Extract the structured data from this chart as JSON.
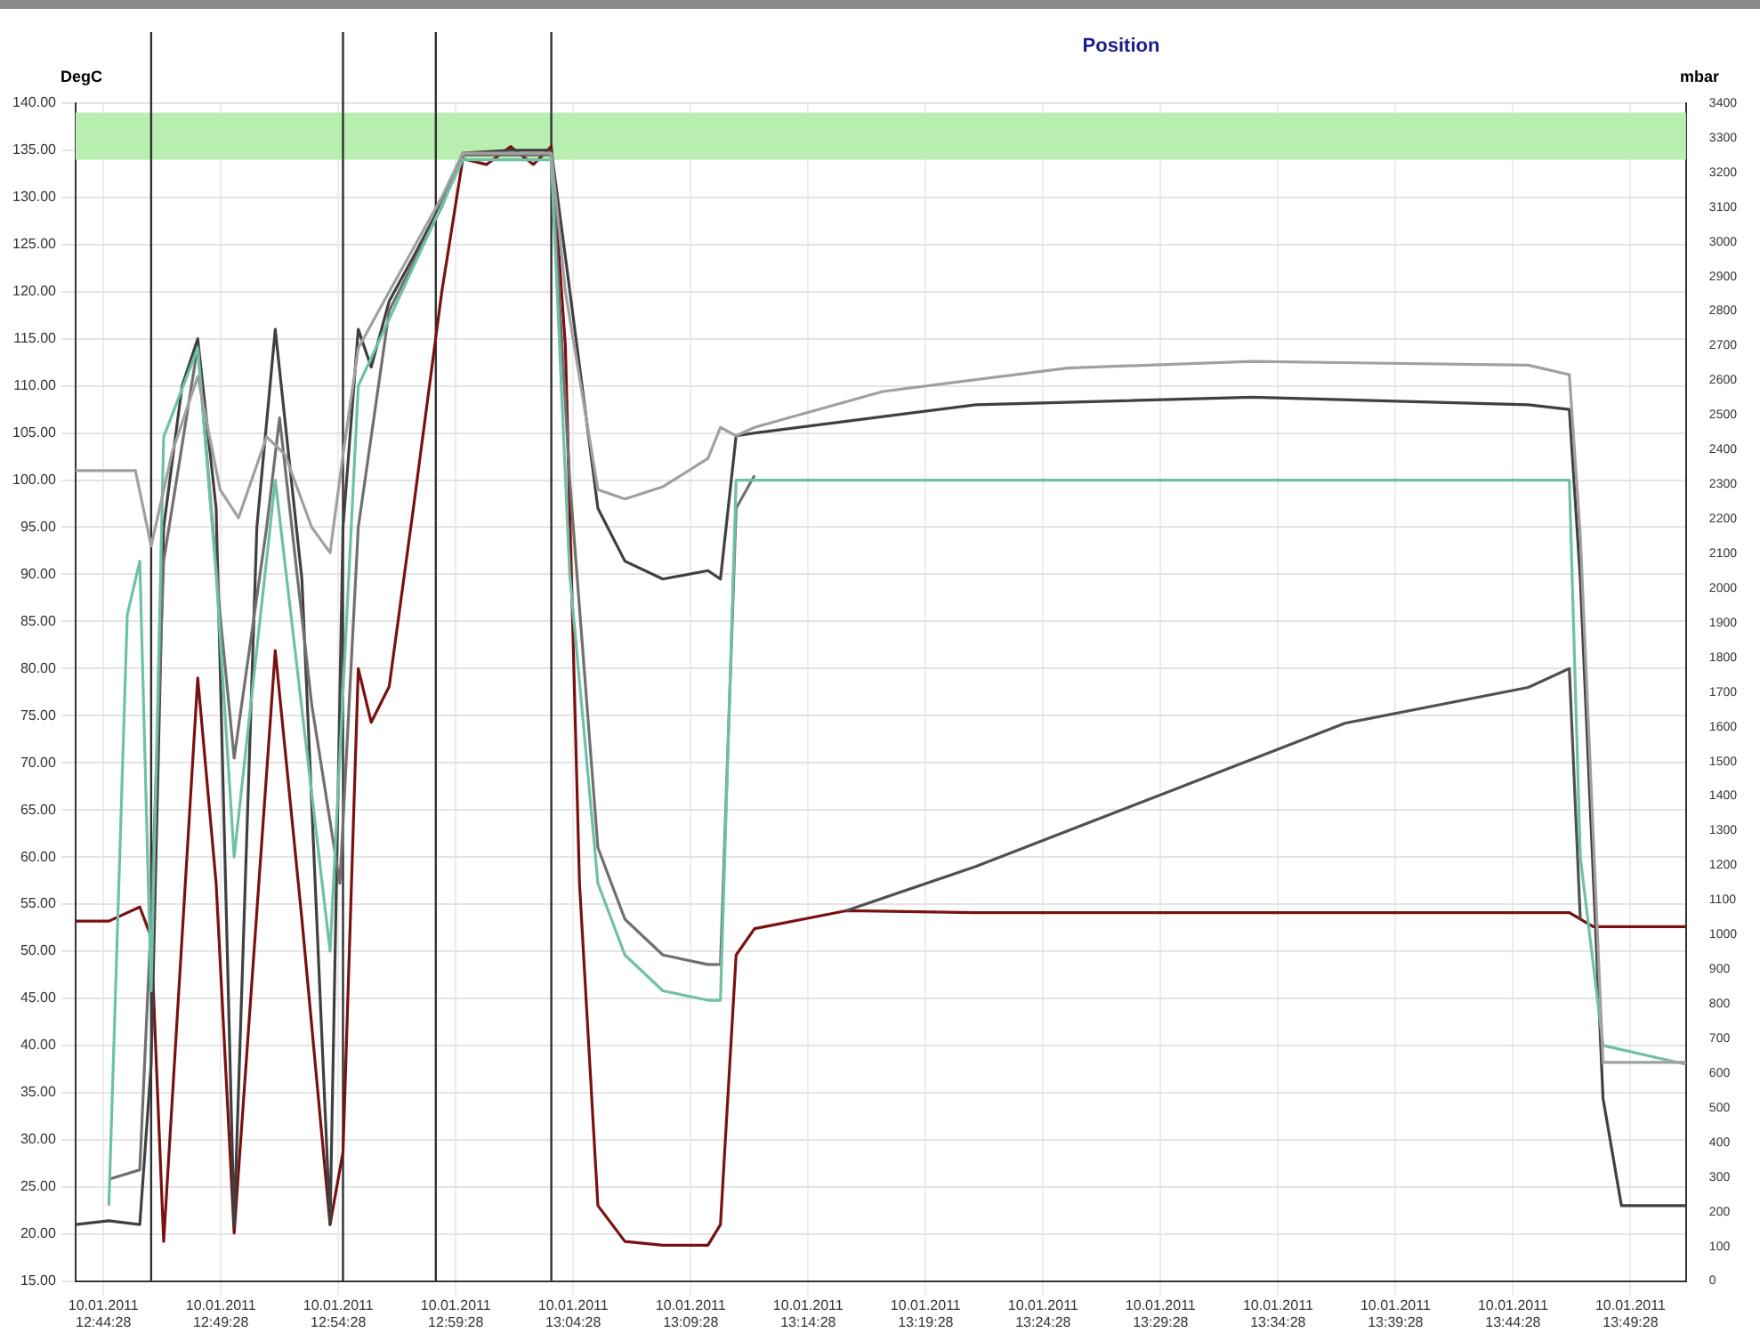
{
  "chart_data": {
    "type": "line",
    "title": "Position",
    "ylabel": "DegC",
    "y2label": "mbar",
    "xlim": [
      "2011-01-10T12:43:17",
      "2011-01-10T13:51:50"
    ],
    "xticks": [
      {
        "value": "2011-01-10T12:44:28",
        "label": "10.01.2011 12:44:28"
      },
      {
        "value": "2011-01-10T12:49:28",
        "label": "10.01.2011 12:49:28"
      },
      {
        "value": "2011-01-10T12:54:28",
        "label": "10.01.2011 12:54:28"
      },
      {
        "value": "2011-01-10T12:59:28",
        "label": "10.01.2011 12:59:28"
      },
      {
        "value": "2011-01-10T13:04:28",
        "label": "10.01.2011 13:04:28"
      },
      {
        "value": "2011-01-10T13:09:28",
        "label": "10.01.2011 13:09:28"
      },
      {
        "value": "2011-01-10T13:14:28",
        "label": "10.01.2011 13:14:28"
      },
      {
        "value": "2011-01-10T13:19:28",
        "label": "10.01.2011 13:19:28"
      },
      {
        "value": "2011-01-10T13:24:28",
        "label": "10.01.2011 13:24:28"
      },
      {
        "value": "2011-01-10T13:29:28",
        "label": "10.01.2011 13:29:28"
      },
      {
        "value": "2011-01-10T13:34:28",
        "label": "10.01.2011 13:34:28"
      },
      {
        "value": "2011-01-10T13:39:28",
        "label": "10.01.2011 13:39:28"
      },
      {
        "value": "2011-01-10T13:44:28",
        "label": "10.01.2011 13:44:28"
      },
      {
        "value": "2011-01-10T13:49:28",
        "label": "10.01.2011 13:49:28"
      }
    ],
    "ylim": [
      15,
      140
    ],
    "yticks": [
      {
        "value": 15,
        "label": "15.00"
      },
      {
        "value": 20,
        "label": "20.00"
      },
      {
        "value": 25,
        "label": "25.00"
      },
      {
        "value": 30,
        "label": "30.00"
      },
      {
        "value": 35,
        "label": "35.00"
      },
      {
        "value": 40,
        "label": "40.00"
      },
      {
        "value": 45,
        "label": "45.00"
      },
      {
        "value": 50,
        "label": "50.00"
      },
      {
        "value": 55,
        "label": "55.00"
      },
      {
        "value": 60,
        "label": "60.00"
      },
      {
        "value": 65,
        "label": "65.00"
      },
      {
        "value": 70,
        "label": "70.00"
      },
      {
        "value": 75,
        "label": "75.00"
      },
      {
        "value": 80,
        "label": "80.00"
      },
      {
        "value": 85,
        "label": "85.00"
      },
      {
        "value": 90,
        "label": "90.00"
      },
      {
        "value": 95,
        "label": "95.00"
      },
      {
        "value": 100,
        "label": "100.00"
      },
      {
        "value": 105,
        "label": "105.00"
      },
      {
        "value": 110,
        "label": "110.00"
      },
      {
        "value": 115,
        "label": "115.00"
      },
      {
        "value": 120,
        "label": "120.00"
      },
      {
        "value": 125,
        "label": "125.00"
      },
      {
        "value": 130,
        "label": "130.00"
      },
      {
        "value": 135,
        "label": "135.00"
      },
      {
        "value": 140,
        "label": "140.00"
      }
    ],
    "y2lim": [
      0,
      3400
    ],
    "y2ticks": [
      0,
      100,
      200,
      300,
      400,
      500,
      600,
      700,
      800,
      900,
      1000,
      1100,
      1200,
      1300,
      1400,
      1500,
      1600,
      1700,
      1800,
      1900,
      2000,
      2100,
      2200,
      2300,
      2400,
      2500,
      2600,
      2700,
      2800,
      2900,
      3000,
      3100,
      3200,
      3300,
      3400
    ],
    "grid": true,
    "legend": false,
    "bands": [
      {
        "axis": "y",
        "from": 134,
        "to": 139,
        "color": "#b8efb0"
      }
    ],
    "ref_lines": [
      {
        "axis": "x",
        "value": "2011-01-10T12:46:30",
        "color": "#303030"
      },
      {
        "axis": "x",
        "value": "2011-01-10T12:54:40",
        "color": "#303030"
      },
      {
        "axis": "x",
        "value": "2011-01-10T12:58:37",
        "color": "#303030"
      },
      {
        "axis": "x",
        "value": "2011-01-10T13:03:32",
        "color": "#303030"
      }
    ],
    "series": [
      {
        "color": "#a0a0a0",
        "x": [
          "2011-01-10T12:43:17",
          "2011-01-10T12:45:50",
          "2011-01-10T12:46:30",
          "2011-01-10T12:47:24",
          "2011-01-10T12:48:29",
          "2011-01-10T12:49:26",
          "2011-01-10T12:50:13",
          "2011-01-10T12:51:25",
          "2011-01-10T12:52:12",
          "2011-01-10T12:53:20",
          "2011-01-10T12:54:07",
          "2011-01-10T12:54:40",
          "2011-01-10T12:55:19",
          "2011-01-10T12:56:38",
          "2011-01-10T12:58:52",
          "2011-01-10T12:59:46",
          "2011-01-10T13:03:32",
          "2011-01-10T13:04:08",
          "2011-01-10T13:05:31",
          "2011-01-10T13:06:40",
          "2011-01-10T13:08:17",
          "2011-01-10T13:10:12",
          "2011-01-10T13:10:44",
          "2011-01-10T13:11:24",
          "2011-01-10T13:12:11",
          "2011-01-10T13:17:38",
          "2011-01-10T13:25:30",
          "2011-01-10T13:33:22",
          "2011-01-10T13:45:07",
          "2011-01-10T13:46:52",
          "2011-01-10T13:47:20",
          "2011-01-10T13:48:18",
          "2011-01-10T13:51:50"
        ],
        "values": [
          101,
          101,
          93,
          103,
          111,
          99,
          96,
          104.6,
          102.7,
          95,
          92.3,
          102.7,
          114,
          120,
          130,
          134.7,
          134.7,
          120,
          99,
          98,
          99.3,
          102.3,
          105.6,
          104.7,
          105.6,
          109.4,
          111.9,
          112.6,
          112.2,
          111.2,
          94.1,
          38.2,
          38.2
        ]
      },
      {
        "color": "#6fc0a8",
        "x": [
          "2011-01-10T12:44:42",
          "2011-01-10T12:45:29",
          "2011-01-10T12:46:01",
          "2011-01-10T12:46:30",
          "2011-01-10T12:47:02",
          "2011-01-10T12:48:29",
          "2011-01-10T12:49:16",
          "2011-01-10T12:50:02",
          "2011-01-10T12:51:47",
          "2011-01-10T12:54:07",
          "2011-01-10T12:55:19",
          "2011-01-10T12:59:46",
          "2011-01-10T13:03:32",
          "2011-01-10T13:04:19",
          "2011-01-10T13:05:31",
          "2011-01-10T13:06:40",
          "2011-01-10T13:08:17",
          "2011-01-10T13:10:12",
          "2011-01-10T13:10:44",
          "2011-01-10T13:11:24",
          "2011-01-10T13:12:11",
          "2011-01-10T13:25:30",
          "2011-01-10T13:46:52",
          "2011-01-10T13:47:20",
          "2011-01-10T13:48:18",
          "2011-01-10T13:51:50"
        ],
        "values": [
          23,
          85.7,
          91.4,
          45.8,
          104.6,
          114,
          90,
          60,
          100,
          50,
          110,
          134,
          134,
          90,
          57.2,
          49.6,
          45.8,
          44.8,
          44.8,
          100,
          100,
          100,
          100,
          60,
          40,
          38
        ]
      },
      {
        "color": "#707070",
        "x": [
          "2011-01-10T12:44:42",
          "2011-01-10T12:46:01",
          "2011-01-10T12:46:30",
          "2011-01-10T12:47:02",
          "2011-01-10T12:48:29",
          "2011-01-10T12:49:26",
          "2011-01-10T12:50:02",
          "2011-01-10T12:51:25",
          "2011-01-10T12:51:58",
          "2011-01-10T12:53:20",
          "2011-01-10T12:54:32",
          "2011-01-10T12:55:19",
          "2011-01-10T12:56:38",
          "2011-01-10T12:58:52",
          "2011-01-10T12:59:46",
          "2011-01-10T13:03:32",
          "2011-01-10T13:04:19",
          "2011-01-10T13:05:31",
          "2011-01-10T13:06:40",
          "2011-01-10T13:08:17",
          "2011-01-10T13:10:12",
          "2011-01-10T13:10:44",
          "2011-01-10T13:11:24",
          "2011-01-10T13:12:11"
        ],
        "values": [
          25.8,
          26.8,
          53.4,
          91.4,
          114.2,
          85.7,
          70.5,
          95,
          106.6,
          76.2,
          57.2,
          95,
          118,
          129,
          134.5,
          134.5,
          100,
          61,
          53.4,
          49.6,
          48.6,
          48.6,
          97,
          100.5
        ]
      },
      {
        "color": "#404040",
        "x": [
          "2011-01-10T12:43:17",
          "2011-01-10T12:44:42",
          "2011-01-10T12:46:01",
          "2011-01-10T12:46:30",
          "2011-01-10T12:47:02",
          "2011-01-10T12:47:49",
          "2011-01-10T12:48:29",
          "2011-01-10T12:49:16",
          "2011-01-10T12:50:02",
          "2011-01-10T12:51:00",
          "2011-01-10T12:51:47",
          "2011-01-10T12:52:55",
          "2011-01-10T12:54:07",
          "2011-01-10T12:54:40",
          "2011-01-10T12:55:19",
          "2011-01-10T12:55:52",
          "2011-01-10T12:56:38",
          "2011-01-10T12:57:40",
          "2011-01-10T12:58:52",
          "2011-01-10T12:59:46",
          "2011-01-10T13:01:48",
          "2011-01-10T13:03:32",
          "2011-01-10T13:04:08",
          "2011-01-10T13:05:31",
          "2011-01-10T13:06:40",
          "2011-01-10T13:08:17",
          "2011-01-10T13:10:12",
          "2011-01-10T13:10:44",
          "2011-01-10T13:11:24",
          "2011-01-10T13:12:11",
          "2011-01-10T13:21:36",
          "2011-01-10T13:33:22",
          "2011-01-10T13:45:07",
          "2011-01-10T13:46:52",
          "2011-01-10T13:47:20",
          "2011-01-10T13:48:18",
          "2011-01-10T13:49:05",
          "2011-01-10T13:51:50"
        ],
        "values": [
          21,
          21.4,
          21,
          38,
          95,
          110,
          115,
          97,
          21,
          95,
          116,
          89.5,
          21,
          95,
          116,
          112,
          119,
          123.7,
          129.4,
          134.7,
          135,
          135,
          123.7,
          97,
          91.4,
          89.5,
          90.4,
          89.5,
          104.7,
          105,
          108,
          108.8,
          108,
          107.5,
          89.5,
          34.4,
          23,
          23
        ]
      },
      {
        "color": "#505050",
        "x": [
          "2011-01-10T13:16:05",
          "2011-01-10T13:21:36",
          "2011-01-10T13:29:28",
          "2011-01-10T13:37:19",
          "2011-01-10T13:45:07",
          "2011-01-10T13:46:52",
          "2011-01-10T13:47:20"
        ],
        "values": [
          54.3,
          59,
          66.6,
          74.2,
          78,
          80,
          53.4
        ]
      },
      {
        "color": "#7a1010",
        "x": [
          "2011-01-10T12:43:17",
          "2011-01-10T12:44:42",
          "2011-01-10T12:46:01",
          "2011-01-10T12:46:30",
          "2011-01-10T12:47:02",
          "2011-01-10T12:48:29",
          "2011-01-10T12:49:16",
          "2011-01-10T12:50:02",
          "2011-01-10T12:51:47",
          "2011-01-10T12:52:55",
          "2011-01-10T12:54:07",
          "2011-01-10T12:54:40",
          "2011-01-10T12:55:19",
          "2011-01-10T12:55:52",
          "2011-01-10T12:56:38",
          "2011-01-10T12:57:40",
          "2011-01-10T12:58:52",
          "2011-01-10T12:59:46",
          "2011-01-10T13:00:47",
          "2011-01-10T13:01:48",
          "2011-01-10T13:02:46",
          "2011-01-10T13:03:32",
          "2011-01-10T13:04:08",
          "2011-01-10T13:04:44",
          "2011-01-10T13:05:31",
          "2011-01-10T13:06:40",
          "2011-01-10T13:08:17",
          "2011-01-10T13:10:12",
          "2011-01-10T13:10:44",
          "2011-01-10T13:11:24",
          "2011-01-10T13:12:11",
          "2011-01-10T13:16:05",
          "2011-01-10T13:21:36",
          "2011-01-10T13:33:22",
          "2011-01-10T13:45:07",
          "2011-01-10T13:46:52",
          "2011-01-10T13:47:53",
          "2011-01-10T13:51:50"
        ],
        "values": [
          53.2,
          53.2,
          54.7,
          51.5,
          19.2,
          79,
          57.2,
          20.1,
          81.9,
          53.4,
          21,
          28.7,
          80,
          74.3,
          78.1,
          97.1,
          119.9,
          134.1,
          133.5,
          135.4,
          133.5,
          135.4,
          114.2,
          57.2,
          23,
          19.2,
          18.8,
          18.8,
          21,
          49.6,
          52.4,
          54.3,
          54.1,
          54.1,
          54.1,
          54.1,
          52.6,
          52.6
        ]
      }
    ]
  }
}
